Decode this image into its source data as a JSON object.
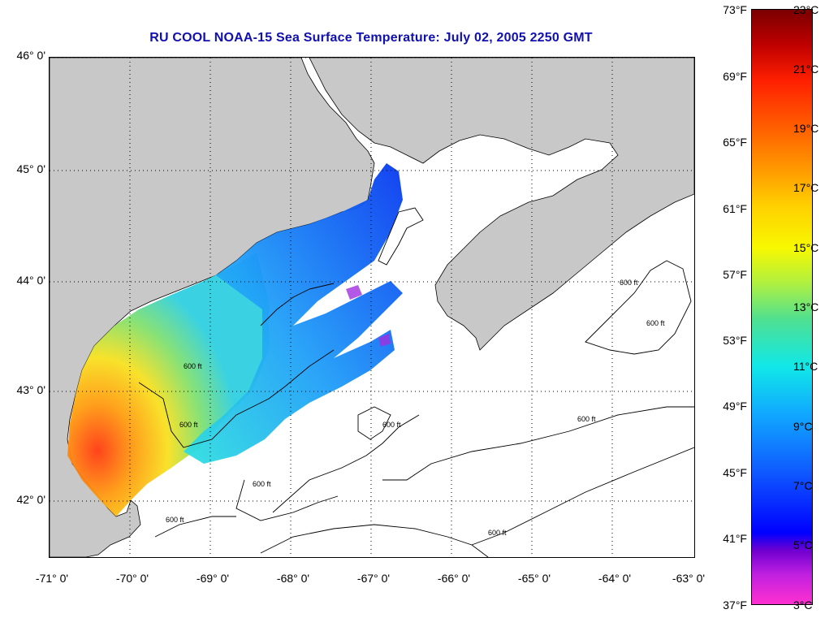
{
  "title": "RU COOL  NOAA-15  Sea Surface Temperature:  July 02, 2005 2250 GMT",
  "lat_labels": [
    "46° 0'",
    "45° 0'",
    "44° 0'",
    "43° 0'",
    "42° 0'"
  ],
  "lon_labels": [
    "-71° 0'",
    "-70° 0'",
    "-69° 0'",
    "-68° 0'",
    "-67° 0'",
    "-66° 0'",
    "-65° 0'",
    "-64° 0'",
    "-63° 0'"
  ],
  "contour_label": "600 ft",
  "colorbar": {
    "fahrenheit": [
      "73°F",
      "69°F",
      "65°F",
      "61°F",
      "57°F",
      "53°F",
      "49°F",
      "45°F",
      "41°F",
      "37°F"
    ],
    "celsius": [
      "23°C",
      "21°C",
      "19°C",
      "17°C",
      "15°C",
      "13°C",
      "11°C",
      "9°C",
      "7°C",
      "5°C",
      "3°C"
    ]
  },
  "colors": {
    "land": "#c8c8c8",
    "title": "#1010b0"
  }
}
